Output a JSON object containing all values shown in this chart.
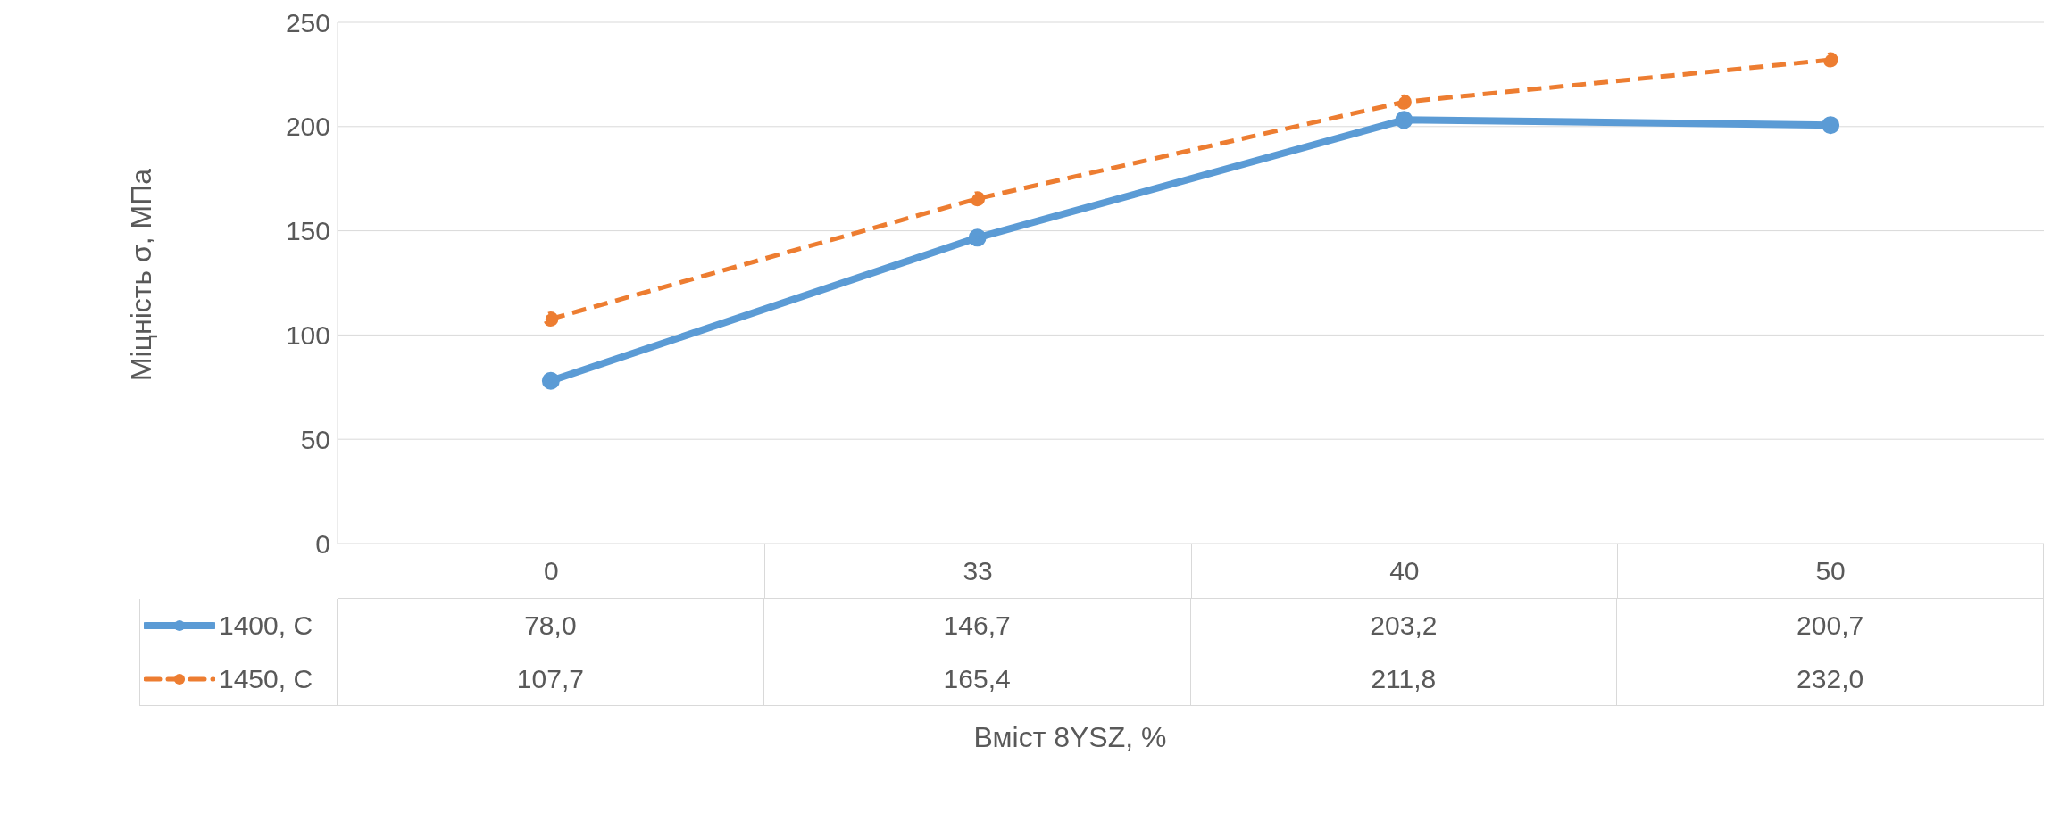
{
  "chart_data": {
    "type": "line",
    "ylabel": "Міцність σ, МПа",
    "xlabel": "Вміст 8YSZ, %",
    "categories": [
      "0",
      "33",
      "40",
      "50"
    ],
    "series": [
      {
        "name": "1400, C",
        "color": "#5b9bd5",
        "line_style": "solid",
        "values": [
          78.0,
          146.7,
          203.2,
          200.7
        ],
        "value_labels": [
          "78,0",
          "146,7",
          "203,2",
          "200,7"
        ]
      },
      {
        "name": "1450, C",
        "color": "#ed7d31",
        "line_style": "dashed",
        "values": [
          107.7,
          165.4,
          211.8,
          232.0
        ],
        "value_labels": [
          "107,7",
          "165,4",
          "211,8",
          "232,0"
        ]
      }
    ],
    "ylim": [
      0,
      250
    ],
    "yticks": [
      0,
      50,
      100,
      150,
      200,
      250
    ],
    "grid": "y",
    "marker": "circle",
    "legend": "bottom"
  }
}
